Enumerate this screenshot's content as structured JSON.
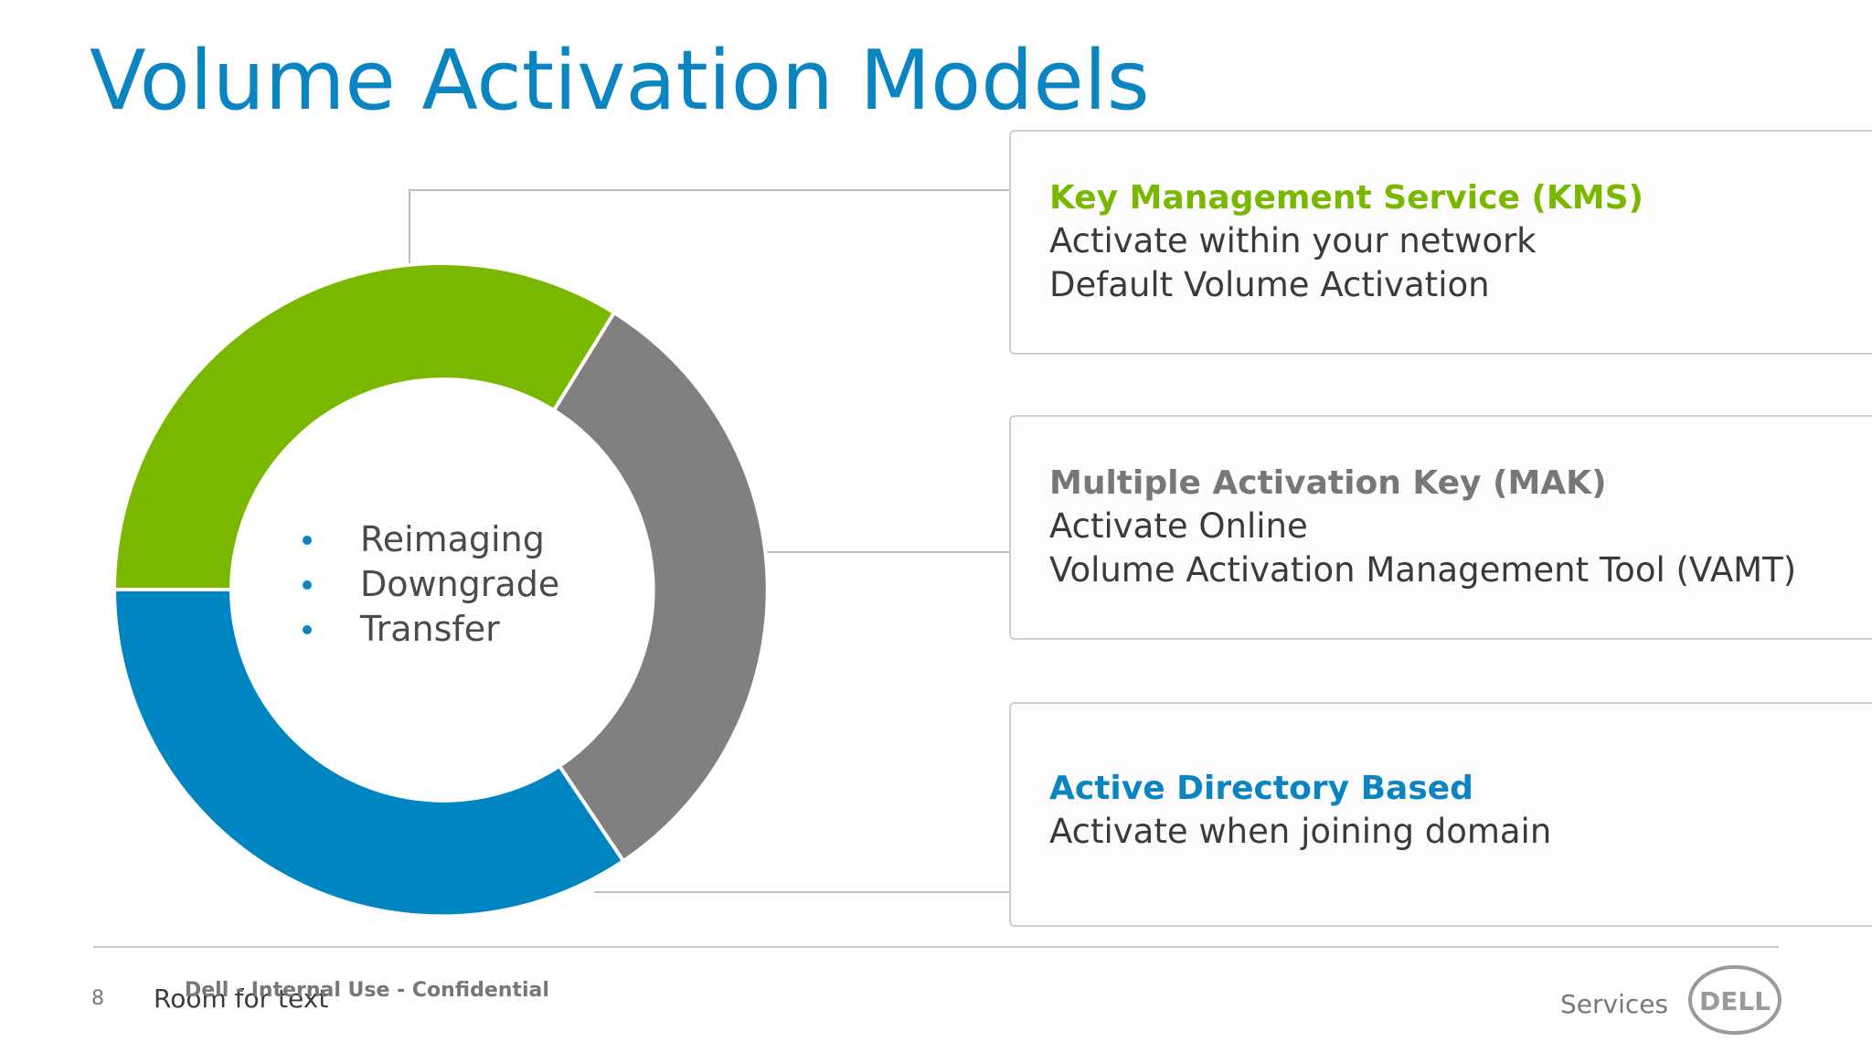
{
  "slide": {
    "title": "Volume Activation Models",
    "page_number": "8",
    "placeholder_text": "Room for text",
    "confidentiality": "Dell - Internal Use - Confidential",
    "services_label": "Services",
    "logo_text": "DELL"
  },
  "donut": {
    "center_bullets": [
      "Reimaging",
      "Downgrade",
      "Transfer"
    ],
    "segment_colors": {
      "kms": "#7ab800",
      "mak": "#808080",
      "ad": "#0085c3"
    }
  },
  "models": [
    {
      "title": "Key Management Service (KMS)",
      "color": "#7ab800",
      "lines": [
        "Activate within your network",
        "Default Volume Activation"
      ]
    },
    {
      "title": "Multiple Activation Key (MAK)",
      "color": "#777777",
      "lines": [
        "Activate Online",
        "Volume Activation Management Tool (VAMT)"
      ]
    },
    {
      "title": "Active Directory Based",
      "color": "#0a85c2",
      "lines": [
        "Activate when joining domain"
      ]
    }
  ]
}
